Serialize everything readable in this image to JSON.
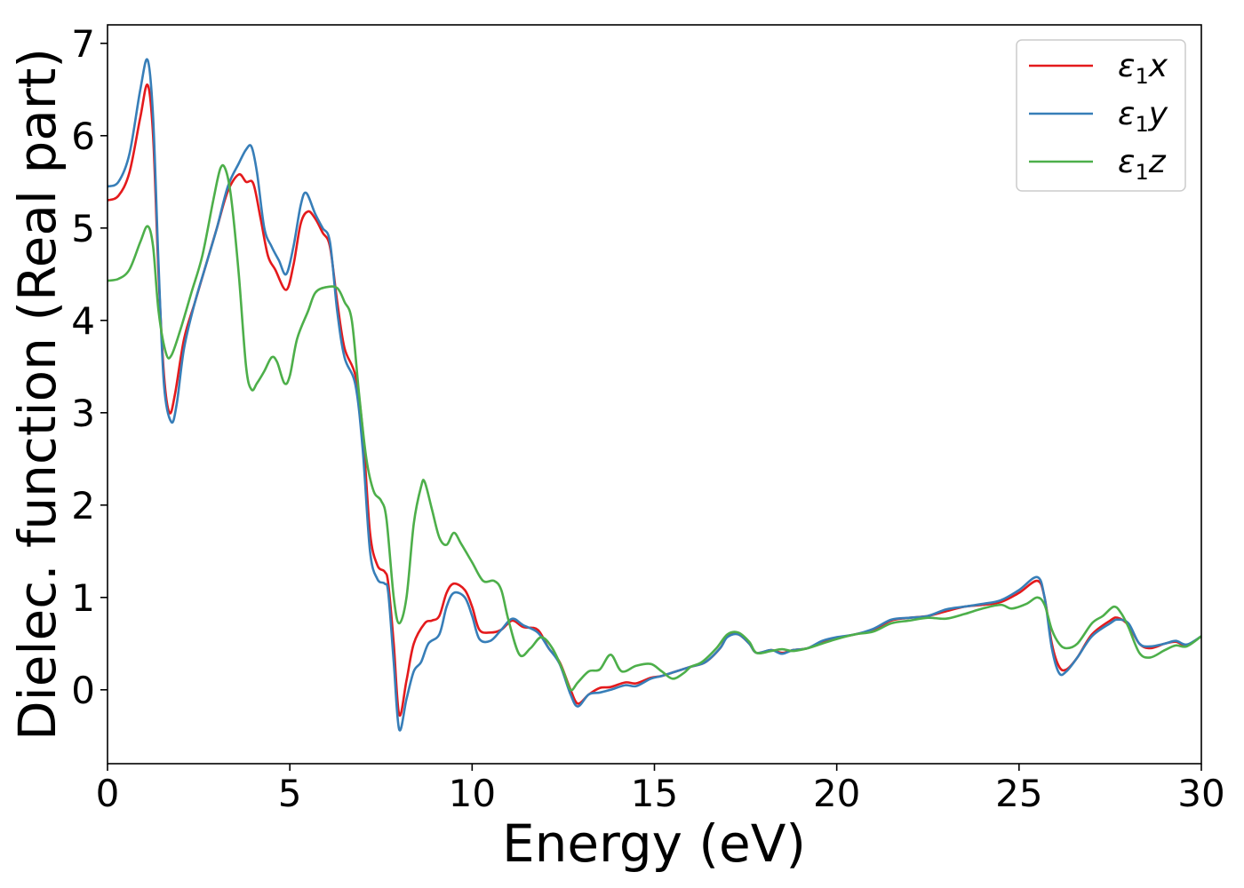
{
  "chart_data": {
    "type": "line",
    "xlabel": "Energy (eV)",
    "ylabel": "Dielec. function (Real part)",
    "xlim": [
      0,
      30
    ],
    "ylim": [
      -0.8,
      7.2
    ],
    "xticks": [
      "0",
      "5",
      "10",
      "15",
      "20",
      "25",
      "30"
    ],
    "yticks": [
      "0",
      "1",
      "2",
      "3",
      "4",
      "5",
      "6",
      "7"
    ],
    "grid": false,
    "legend_position": "top-right",
    "series": [
      {
        "name": "ε1x",
        "legend": {
          "base": "ε",
          "sub": "1",
          "suffix": "x"
        },
        "color": "#e41a1c",
        "points": [
          [
            0,
            5.3
          ],
          [
            0.3,
            5.35
          ],
          [
            0.6,
            5.6
          ],
          [
            0.9,
            6.2
          ],
          [
            1.1,
            6.55
          ],
          [
            1.25,
            6.0
          ],
          [
            1.4,
            4.5
          ],
          [
            1.55,
            3.4
          ],
          [
            1.7,
            3.0
          ],
          [
            1.85,
            3.2
          ],
          [
            2.1,
            3.8
          ],
          [
            2.4,
            4.2
          ],
          [
            2.7,
            4.6
          ],
          [
            3.0,
            5.0
          ],
          [
            3.3,
            5.4
          ],
          [
            3.6,
            5.58
          ],
          [
            3.8,
            5.5
          ],
          [
            4.0,
            5.48
          ],
          [
            4.2,
            5.1
          ],
          [
            4.4,
            4.7
          ],
          [
            4.6,
            4.55
          ],
          [
            4.9,
            4.33
          ],
          [
            5.1,
            4.6
          ],
          [
            5.3,
            5.05
          ],
          [
            5.5,
            5.18
          ],
          [
            5.7,
            5.1
          ],
          [
            5.9,
            4.95
          ],
          [
            6.1,
            4.8
          ],
          [
            6.3,
            4.2
          ],
          [
            6.5,
            3.7
          ],
          [
            6.8,
            3.4
          ],
          [
            7.0,
            2.8
          ],
          [
            7.2,
            1.7
          ],
          [
            7.4,
            1.35
          ],
          [
            7.6,
            1.28
          ],
          [
            7.7,
            1.15
          ],
          [
            7.85,
            0.5
          ],
          [
            8.0,
            -0.27
          ],
          [
            8.2,
            0.1
          ],
          [
            8.4,
            0.5
          ],
          [
            8.7,
            0.72
          ],
          [
            8.9,
            0.75
          ],
          [
            9.1,
            0.8
          ],
          [
            9.3,
            1.05
          ],
          [
            9.5,
            1.15
          ],
          [
            9.8,
            1.08
          ],
          [
            10.0,
            0.9
          ],
          [
            10.2,
            0.65
          ],
          [
            10.5,
            0.62
          ],
          [
            10.8,
            0.65
          ],
          [
            11.1,
            0.75
          ],
          [
            11.4,
            0.68
          ],
          [
            11.8,
            0.65
          ],
          [
            12.1,
            0.45
          ],
          [
            12.4,
            0.3
          ],
          [
            12.7,
            0.0
          ],
          [
            12.9,
            -0.15
          ],
          [
            13.2,
            -0.05
          ],
          [
            13.5,
            0.02
          ],
          [
            13.8,
            0.03
          ],
          [
            14.2,
            0.08
          ],
          [
            14.5,
            0.07
          ],
          [
            14.9,
            0.13
          ],
          [
            15.2,
            0.15
          ],
          [
            15.6,
            0.2
          ],
          [
            16.0,
            0.25
          ],
          [
            16.4,
            0.3
          ],
          [
            16.8,
            0.45
          ],
          [
            17.0,
            0.58
          ],
          [
            17.3,
            0.6
          ],
          [
            17.6,
            0.5
          ],
          [
            17.8,
            0.4
          ],
          [
            18.2,
            0.43
          ],
          [
            18.5,
            0.4
          ],
          [
            18.8,
            0.43
          ],
          [
            19.2,
            0.45
          ],
          [
            19.6,
            0.52
          ],
          [
            20.0,
            0.56
          ],
          [
            20.5,
            0.6
          ],
          [
            21.0,
            0.65
          ],
          [
            21.5,
            0.75
          ],
          [
            22.0,
            0.78
          ],
          [
            22.5,
            0.8
          ],
          [
            23.0,
            0.85
          ],
          [
            23.5,
            0.9
          ],
          [
            24.0,
            0.92
          ],
          [
            24.5,
            0.95
          ],
          [
            25.0,
            1.05
          ],
          [
            25.5,
            1.18
          ],
          [
            25.7,
            1.0
          ],
          [
            25.9,
            0.5
          ],
          [
            26.1,
            0.25
          ],
          [
            26.3,
            0.22
          ],
          [
            26.6,
            0.35
          ],
          [
            27.0,
            0.6
          ],
          [
            27.5,
            0.75
          ],
          [
            27.7,
            0.78
          ],
          [
            28.0,
            0.7
          ],
          [
            28.3,
            0.5
          ],
          [
            28.6,
            0.45
          ],
          [
            29.0,
            0.5
          ],
          [
            29.3,
            0.52
          ],
          [
            29.6,
            0.48
          ],
          [
            30.0,
            0.58
          ]
        ]
      },
      {
        "name": "ε1y",
        "legend": {
          "base": "ε",
          "sub": "1",
          "suffix": "y"
        },
        "color": "#377eb8",
        "points": [
          [
            0,
            5.45
          ],
          [
            0.3,
            5.5
          ],
          [
            0.6,
            5.8
          ],
          [
            0.9,
            6.5
          ],
          [
            1.1,
            6.82
          ],
          [
            1.25,
            6.2
          ],
          [
            1.4,
            4.6
          ],
          [
            1.55,
            3.3
          ],
          [
            1.75,
            2.9
          ],
          [
            1.9,
            3.1
          ],
          [
            2.1,
            3.7
          ],
          [
            2.4,
            4.2
          ],
          [
            2.7,
            4.6
          ],
          [
            3.0,
            5.0
          ],
          [
            3.3,
            5.45
          ],
          [
            3.6,
            5.7
          ],
          [
            3.8,
            5.85
          ],
          [
            3.95,
            5.88
          ],
          [
            4.1,
            5.6
          ],
          [
            4.3,
            5.0
          ],
          [
            4.5,
            4.8
          ],
          [
            4.7,
            4.65
          ],
          [
            4.9,
            4.5
          ],
          [
            5.1,
            4.8
          ],
          [
            5.3,
            5.25
          ],
          [
            5.45,
            5.38
          ],
          [
            5.7,
            5.15
          ],
          [
            5.9,
            5.0
          ],
          [
            6.1,
            4.85
          ],
          [
            6.3,
            4.1
          ],
          [
            6.5,
            3.6
          ],
          [
            6.8,
            3.3
          ],
          [
            7.0,
            2.6
          ],
          [
            7.2,
            1.5
          ],
          [
            7.4,
            1.2
          ],
          [
            7.6,
            1.15
          ],
          [
            7.7,
            1.05
          ],
          [
            7.85,
            0.3
          ],
          [
            8.0,
            -0.43
          ],
          [
            8.2,
            -0.1
          ],
          [
            8.4,
            0.2
          ],
          [
            8.6,
            0.3
          ],
          [
            8.8,
            0.5
          ],
          [
            9.1,
            0.6
          ],
          [
            9.3,
            0.9
          ],
          [
            9.5,
            1.05
          ],
          [
            9.8,
            1.0
          ],
          [
            10.0,
            0.8
          ],
          [
            10.2,
            0.55
          ],
          [
            10.5,
            0.53
          ],
          [
            10.8,
            0.65
          ],
          [
            11.1,
            0.77
          ],
          [
            11.4,
            0.7
          ],
          [
            11.8,
            0.62
          ],
          [
            12.1,
            0.45
          ],
          [
            12.4,
            0.28
          ],
          [
            12.7,
            -0.05
          ],
          [
            12.9,
            -0.18
          ],
          [
            13.2,
            -0.05
          ],
          [
            13.5,
            -0.03
          ],
          [
            13.8,
            0.0
          ],
          [
            14.2,
            0.05
          ],
          [
            14.5,
            0.04
          ],
          [
            14.9,
            0.12
          ],
          [
            15.2,
            0.15
          ],
          [
            15.6,
            0.2
          ],
          [
            16.0,
            0.25
          ],
          [
            16.4,
            0.3
          ],
          [
            16.8,
            0.45
          ],
          [
            17.0,
            0.57
          ],
          [
            17.3,
            0.6
          ],
          [
            17.6,
            0.5
          ],
          [
            17.8,
            0.4
          ],
          [
            18.2,
            0.43
          ],
          [
            18.5,
            0.39
          ],
          [
            18.8,
            0.43
          ],
          [
            19.2,
            0.45
          ],
          [
            19.6,
            0.53
          ],
          [
            20.0,
            0.57
          ],
          [
            20.5,
            0.6
          ],
          [
            21.0,
            0.66
          ],
          [
            21.5,
            0.76
          ],
          [
            22.0,
            0.78
          ],
          [
            22.5,
            0.8
          ],
          [
            23.0,
            0.87
          ],
          [
            23.5,
            0.9
          ],
          [
            24.0,
            0.93
          ],
          [
            24.5,
            0.97
          ],
          [
            25.0,
            1.08
          ],
          [
            25.5,
            1.22
          ],
          [
            25.7,
            1.0
          ],
          [
            25.9,
            0.45
          ],
          [
            26.1,
            0.18
          ],
          [
            26.3,
            0.2
          ],
          [
            26.6,
            0.35
          ],
          [
            27.0,
            0.58
          ],
          [
            27.5,
            0.72
          ],
          [
            27.7,
            0.76
          ],
          [
            28.0,
            0.72
          ],
          [
            28.3,
            0.5
          ],
          [
            28.6,
            0.47
          ],
          [
            29.0,
            0.5
          ],
          [
            29.3,
            0.53
          ],
          [
            29.6,
            0.49
          ],
          [
            30.0,
            0.58
          ]
        ]
      },
      {
        "name": "ε1z",
        "legend": {
          "base": "ε",
          "sub": "1",
          "suffix": "z"
        },
        "color": "#4daf4a",
        "points": [
          [
            0,
            4.43
          ],
          [
            0.3,
            4.45
          ],
          [
            0.6,
            4.55
          ],
          [
            0.9,
            4.85
          ],
          [
            1.1,
            5.02
          ],
          [
            1.25,
            4.8
          ],
          [
            1.4,
            4.1
          ],
          [
            1.6,
            3.65
          ],
          [
            1.75,
            3.62
          ],
          [
            2.0,
            3.9
          ],
          [
            2.3,
            4.3
          ],
          [
            2.6,
            4.7
          ],
          [
            2.9,
            5.3
          ],
          [
            3.1,
            5.65
          ],
          [
            3.25,
            5.62
          ],
          [
            3.4,
            5.3
          ],
          [
            3.6,
            4.5
          ],
          [
            3.8,
            3.5
          ],
          [
            3.95,
            3.25
          ],
          [
            4.1,
            3.32
          ],
          [
            4.3,
            3.45
          ],
          [
            4.5,
            3.6
          ],
          [
            4.65,
            3.55
          ],
          [
            4.85,
            3.32
          ],
          [
            5.0,
            3.4
          ],
          [
            5.2,
            3.8
          ],
          [
            5.5,
            4.1
          ],
          [
            5.7,
            4.3
          ],
          [
            6.0,
            4.36
          ],
          [
            6.3,
            4.35
          ],
          [
            6.5,
            4.2
          ],
          [
            6.7,
            4.0
          ],
          [
            6.9,
            3.2
          ],
          [
            7.1,
            2.5
          ],
          [
            7.3,
            2.15
          ],
          [
            7.5,
            2.05
          ],
          [
            7.65,
            1.85
          ],
          [
            7.85,
            1.0
          ],
          [
            8.0,
            0.72
          ],
          [
            8.2,
            1.0
          ],
          [
            8.4,
            1.8
          ],
          [
            8.6,
            2.2
          ],
          [
            8.7,
            2.25
          ],
          [
            8.9,
            1.95
          ],
          [
            9.1,
            1.65
          ],
          [
            9.3,
            1.57
          ],
          [
            9.5,
            1.7
          ],
          [
            9.7,
            1.58
          ],
          [
            10.0,
            1.38
          ],
          [
            10.3,
            1.18
          ],
          [
            10.6,
            1.18
          ],
          [
            10.8,
            1.08
          ],
          [
            11.0,
            0.75
          ],
          [
            11.3,
            0.38
          ],
          [
            11.6,
            0.45
          ],
          [
            11.9,
            0.57
          ],
          [
            12.2,
            0.45
          ],
          [
            12.5,
            0.2
          ],
          [
            12.7,
            0.0
          ],
          [
            12.9,
            0.08
          ],
          [
            13.2,
            0.2
          ],
          [
            13.5,
            0.22
          ],
          [
            13.8,
            0.38
          ],
          [
            14.1,
            0.2
          ],
          [
            14.5,
            0.26
          ],
          [
            14.9,
            0.28
          ],
          [
            15.2,
            0.2
          ],
          [
            15.5,
            0.12
          ],
          [
            15.8,
            0.18
          ],
          [
            16.0,
            0.25
          ],
          [
            16.3,
            0.3
          ],
          [
            16.7,
            0.45
          ],
          [
            17.0,
            0.6
          ],
          [
            17.3,
            0.62
          ],
          [
            17.6,
            0.52
          ],
          [
            17.8,
            0.4
          ],
          [
            18.2,
            0.42
          ],
          [
            18.5,
            0.44
          ],
          [
            18.8,
            0.42
          ],
          [
            19.2,
            0.45
          ],
          [
            19.6,
            0.5
          ],
          [
            20.0,
            0.55
          ],
          [
            20.5,
            0.6
          ],
          [
            21.0,
            0.63
          ],
          [
            21.5,
            0.72
          ],
          [
            22.0,
            0.75
          ],
          [
            22.5,
            0.78
          ],
          [
            23.0,
            0.77
          ],
          [
            23.5,
            0.82
          ],
          [
            24.0,
            0.88
          ],
          [
            24.5,
            0.92
          ],
          [
            24.8,
            0.88
          ],
          [
            25.2,
            0.93
          ],
          [
            25.5,
            1.0
          ],
          [
            25.7,
            0.92
          ],
          [
            25.9,
            0.65
          ],
          [
            26.1,
            0.5
          ],
          [
            26.3,
            0.45
          ],
          [
            26.6,
            0.5
          ],
          [
            27.0,
            0.72
          ],
          [
            27.3,
            0.8
          ],
          [
            27.6,
            0.9
          ],
          [
            27.8,
            0.83
          ],
          [
            28.0,
            0.68
          ],
          [
            28.3,
            0.4
          ],
          [
            28.6,
            0.35
          ],
          [
            29.0,
            0.43
          ],
          [
            29.3,
            0.48
          ],
          [
            29.6,
            0.47
          ],
          [
            30.0,
            0.58
          ]
        ]
      }
    ]
  }
}
